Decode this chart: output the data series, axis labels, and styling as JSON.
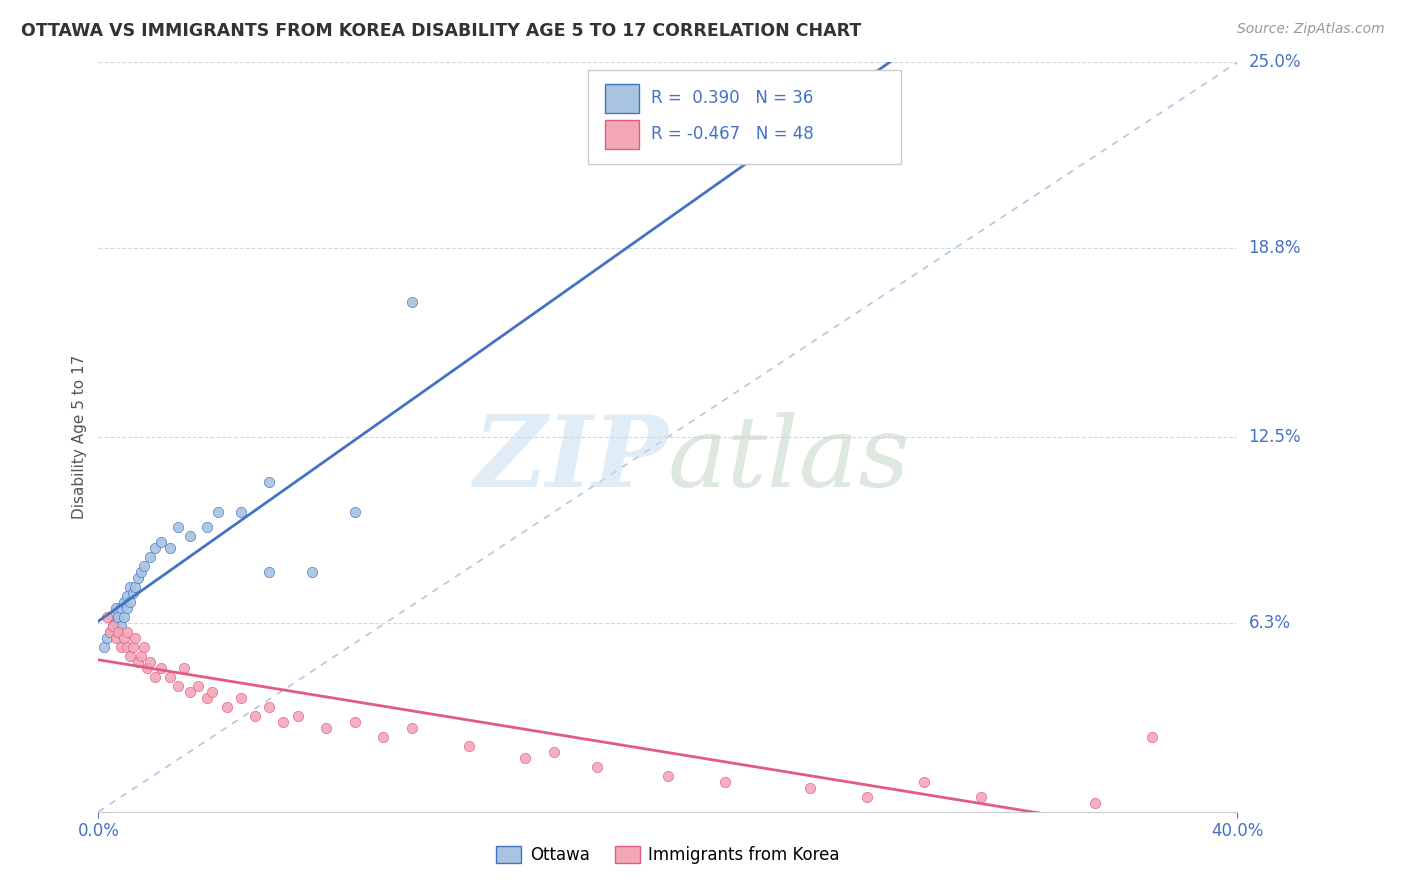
{
  "title": "OTTAWA VS IMMIGRANTS FROM KOREA DISABILITY AGE 5 TO 17 CORRELATION CHART",
  "source": "Source: ZipAtlas.com",
  "ylabel": "Disability Age 5 to 17",
  "xlim": [
    0.0,
    0.4
  ],
  "ylim": [
    0.0,
    0.25
  ],
  "ytick_labels": [
    "25.0%",
    "18.8%",
    "12.5%",
    "6.3%"
  ],
  "ytick_values": [
    0.25,
    0.188,
    0.125,
    0.063
  ],
  "ottawa_R": 0.39,
  "ottawa_N": 36,
  "korea_R": -0.467,
  "korea_N": 48,
  "ottawa_dot_color": "#a8c4e0",
  "ottawa_line_color": "#4472c4",
  "korea_dot_color": "#f4a7b9",
  "korea_line_color": "#e05c80",
  "ref_line_color": "#a0b8d8",
  "grid_color": "#d0d8e8",
  "background_color": "#ffffff",
  "ottawa_x": [
    0.002,
    0.003,
    0.004,
    0.005,
    0.005,
    0.006,
    0.006,
    0.007,
    0.007,
    0.008,
    0.008,
    0.009,
    0.009,
    0.01,
    0.01,
    0.011,
    0.011,
    0.012,
    0.013,
    0.014,
    0.015,
    0.016,
    0.018,
    0.02,
    0.022,
    0.025,
    0.028,
    0.032,
    0.038,
    0.042,
    0.05,
    0.06,
    0.075,
    0.09,
    0.11,
    0.06
  ],
  "ottawa_y": [
    0.055,
    0.058,
    0.06,
    0.062,
    0.065,
    0.063,
    0.068,
    0.06,
    0.065,
    0.062,
    0.068,
    0.07,
    0.065,
    0.068,
    0.072,
    0.07,
    0.075,
    0.073,
    0.075,
    0.078,
    0.08,
    0.082,
    0.085,
    0.088,
    0.09,
    0.088,
    0.095,
    0.092,
    0.095,
    0.1,
    0.1,
    0.11,
    0.08,
    0.1,
    0.17,
    0.08
  ],
  "korea_x": [
    0.003,
    0.004,
    0.005,
    0.006,
    0.007,
    0.008,
    0.009,
    0.01,
    0.01,
    0.011,
    0.012,
    0.013,
    0.014,
    0.015,
    0.016,
    0.017,
    0.018,
    0.02,
    0.022,
    0.025,
    0.028,
    0.03,
    0.032,
    0.035,
    0.038,
    0.04,
    0.045,
    0.05,
    0.055,
    0.06,
    0.065,
    0.07,
    0.08,
    0.09,
    0.1,
    0.11,
    0.13,
    0.15,
    0.16,
    0.175,
    0.2,
    0.22,
    0.25,
    0.27,
    0.29,
    0.31,
    0.35,
    0.37
  ],
  "korea_y": [
    0.065,
    0.06,
    0.062,
    0.058,
    0.06,
    0.055,
    0.058,
    0.06,
    0.055,
    0.052,
    0.055,
    0.058,
    0.05,
    0.052,
    0.055,
    0.048,
    0.05,
    0.045,
    0.048,
    0.045,
    0.042,
    0.048,
    0.04,
    0.042,
    0.038,
    0.04,
    0.035,
    0.038,
    0.032,
    0.035,
    0.03,
    0.032,
    0.028,
    0.03,
    0.025,
    0.028,
    0.022,
    0.018,
    0.02,
    0.015,
    0.012,
    0.01,
    0.008,
    0.005,
    0.01,
    0.005,
    0.003,
    0.025
  ]
}
